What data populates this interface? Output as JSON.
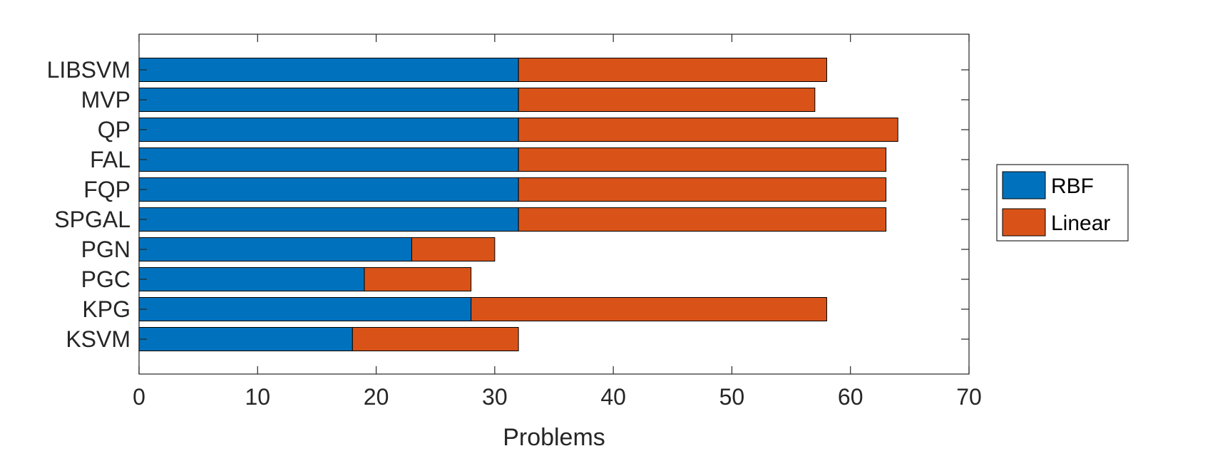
{
  "chart_data": {
    "type": "bar",
    "orientation": "horizontal",
    "stacked": true,
    "categories": [
      "LIBSVM",
      "MVP",
      "QP",
      "FAL",
      "FQP",
      "SPGAL",
      "PGN",
      "PGC",
      "KPG",
      "KSVM"
    ],
    "series": [
      {
        "name": "RBF",
        "color": "#0072BD",
        "values": [
          32,
          32,
          32,
          32,
          32,
          32,
          23,
          19,
          28,
          18
        ]
      },
      {
        "name": "Linear",
        "color": "#D95319",
        "values": [
          26,
          25,
          32,
          31,
          31,
          31,
          7,
          9,
          30,
          14
        ]
      }
    ],
    "xlabel": "Problems",
    "ylabel": "",
    "xlim": [
      0,
      70
    ],
    "xticks": [
      "0",
      "10",
      "20",
      "30",
      "40",
      "50",
      "60",
      "70"
    ],
    "grid": false,
    "legend_position": "right"
  }
}
